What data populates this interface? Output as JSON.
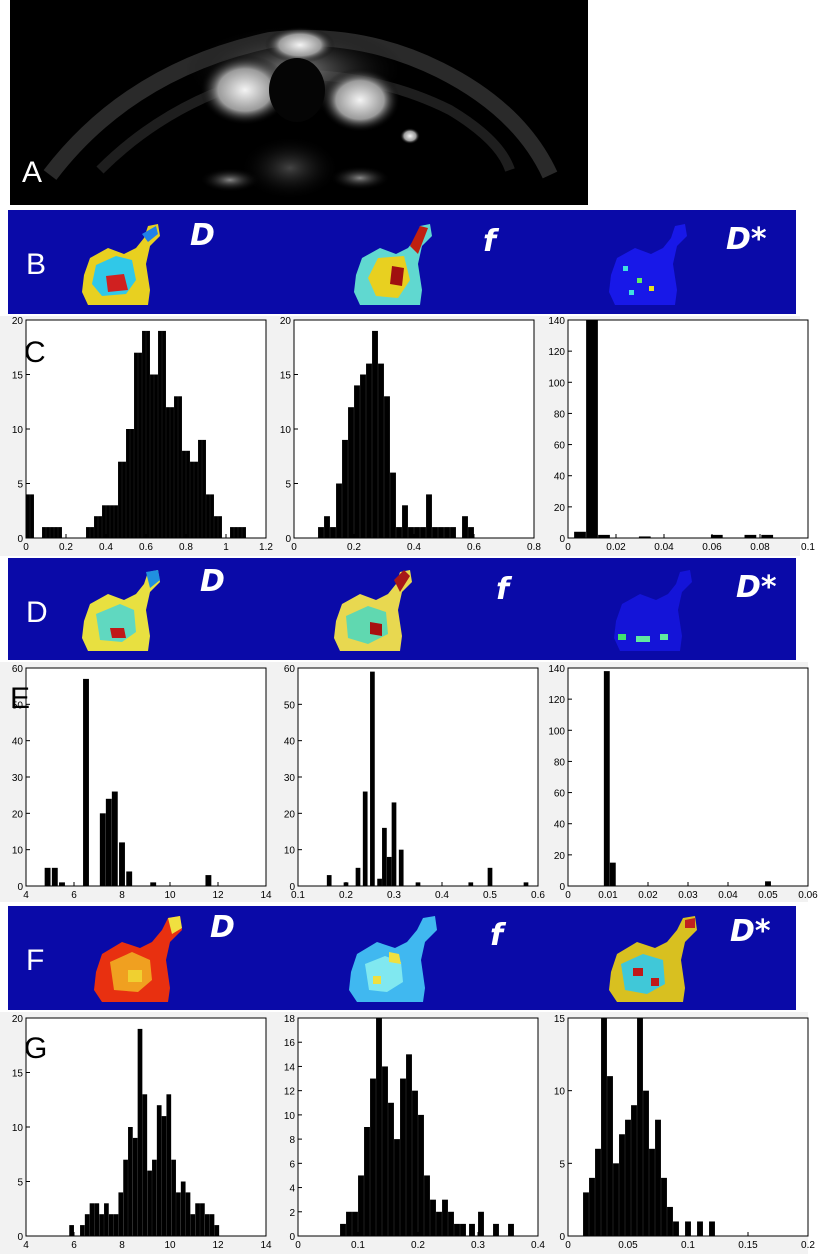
{
  "panel_labels": {
    "A": "A",
    "B": "B",
    "C": "C",
    "D": "D",
    "E": "E",
    "F": "F",
    "G": "G"
  },
  "map_params": [
    "D",
    "f",
    "D*"
  ],
  "colors": {
    "map_bg": "#0a0aa8",
    "bar": "#000000",
    "mri_bg": "#000000"
  },
  "chart_data": [
    {
      "id": "C1",
      "type": "bar",
      "xlim": [
        0,
        1.2
      ],
      "ylim": [
        0,
        20
      ],
      "xticks": [
        "0",
        "0.2",
        "0.4",
        "0.6",
        "0.8",
        "1",
        "1.2"
      ],
      "yticks": [
        "0",
        "5",
        "10",
        "15",
        "20"
      ],
      "x": [
        0.01,
        0.03,
        0.09,
        0.11,
        0.13,
        0.15,
        0.17,
        0.19,
        0.21,
        0.23,
        0.25,
        0.27,
        0.29,
        0.31,
        0.33,
        0.35,
        0.37,
        0.39,
        0.41,
        0.43,
        0.45,
        0.47,
        0.49,
        0.51,
        0.53,
        0.55,
        0.57,
        0.59,
        0.61,
        0.63,
        0.65,
        0.67,
        0.69,
        0.71,
        0.73,
        0.75,
        0.77,
        0.79,
        0.81,
        0.83,
        0.85,
        0.87,
        0.89,
        0.91,
        0.93,
        0.95,
        0.97,
        0.99,
        1.01,
        1.03,
        1.05,
        1.07,
        1.09,
        1.11
      ],
      "values": [
        4,
        4,
        1,
        1,
        1,
        1,
        1,
        0,
        0,
        0,
        0,
        0,
        0,
        1,
        1,
        2,
        2,
        3,
        3,
        3,
        3,
        7,
        7,
        10,
        10,
        17,
        17,
        19,
        19,
        15,
        15,
        19,
        19,
        12,
        12,
        13,
        13,
        8,
        8,
        7,
        7,
        9,
        9,
        4,
        4,
        2,
        2,
        0,
        0,
        1,
        1,
        1,
        1,
        0
      ]
    },
    {
      "id": "C2",
      "type": "bar",
      "xlim": [
        0,
        0.8
      ],
      "ylim": [
        0,
        20
      ],
      "xticks": [
        "0",
        "0.2",
        "0.4",
        "0.6",
        "0.8"
      ],
      "yticks": [
        "0",
        "5",
        "10",
        "15",
        "20"
      ],
      "x": [
        0.09,
        0.11,
        0.13,
        0.15,
        0.17,
        0.19,
        0.21,
        0.23,
        0.25,
        0.27,
        0.29,
        0.31,
        0.33,
        0.35,
        0.37,
        0.39,
        0.41,
        0.43,
        0.45,
        0.47,
        0.49,
        0.51,
        0.53,
        0.55,
        0.57,
        0.59
      ],
      "values": [
        1,
        2,
        1,
        5,
        9,
        12,
        14,
        15,
        16,
        19,
        16,
        13,
        6,
        1,
        3,
        1,
        1,
        1,
        4,
        1,
        1,
        1,
        1,
        0,
        2,
        1
      ]
    },
    {
      "id": "C3",
      "type": "bar",
      "xlim": [
        0,
        0.1
      ],
      "ylim": [
        0,
        140
      ],
      "xticks": [
        "0",
        "0.02",
        "0.04",
        "0.06",
        "0.08",
        "0.1"
      ],
      "yticks": [
        "0",
        "20",
        "40",
        "60",
        "80",
        "100",
        "120",
        "140"
      ],
      "x": [
        0.005,
        0.01,
        0.015,
        0.032,
        0.062,
        0.076,
        0.083
      ],
      "values": [
        4,
        140,
        2,
        1,
        2,
        2,
        2
      ]
    },
    {
      "id": "E1",
      "type": "bar",
      "xlim": [
        4,
        14
      ],
      "ylim": [
        0,
        60
      ],
      "xticks": [
        "4",
        "6",
        "8",
        "10",
        "12",
        "14"
      ],
      "yticks": [
        "0",
        "10",
        "20",
        "30",
        "40",
        "50",
        "60"
      ],
      "x": [
        4.9,
        5.2,
        5.5,
        6.5,
        7.2,
        7.45,
        7.7,
        8.0,
        8.3,
        9.3,
        11.6
      ],
      "values": [
        5,
        5,
        1,
        57,
        20,
        24,
        26,
        12,
        4,
        1,
        3
      ]
    },
    {
      "id": "E2",
      "type": "bar",
      "xlim": [
        0.1,
        0.6
      ],
      "ylim": [
        0,
        60
      ],
      "xticks": [
        "0.1",
        "0.2",
        "0.3",
        "0.4",
        "0.5",
        "0.6"
      ],
      "yticks": [
        "0",
        "10",
        "20",
        "30",
        "40",
        "50",
        "60"
      ],
      "x": [
        0.165,
        0.2,
        0.225,
        0.24,
        0.255,
        0.27,
        0.28,
        0.29,
        0.3,
        0.315,
        0.35,
        0.46,
        0.5,
        0.575
      ],
      "values": [
        3,
        1,
        5,
        26,
        59,
        2,
        16,
        8,
        23,
        10,
        1,
        1,
        5,
        1
      ]
    },
    {
      "id": "E3",
      "type": "bar",
      "xlim": [
        0,
        0.06
      ],
      "ylim": [
        0,
        140
      ],
      "xticks": [
        "0",
        "0.01",
        "0.02",
        "0.03",
        "0.04",
        "0.05",
        "0.06"
      ],
      "yticks": [
        "0",
        "20",
        "40",
        "60",
        "80",
        "100",
        "120",
        "140"
      ],
      "x": [
        0.0097,
        0.0112,
        0.05
      ],
      "values": [
        138,
        15,
        3
      ]
    },
    {
      "id": "G1",
      "type": "bar",
      "xlim": [
        4,
        14
      ],
      "ylim": [
        0,
        20
      ],
      "xticks": [
        "4",
        "6",
        "8",
        "10",
        "12",
        "14"
      ],
      "yticks": [
        "0",
        "5",
        "10",
        "15",
        "20"
      ],
      "x": [
        5.9,
        6.1,
        6.35,
        6.55,
        6.75,
        6.95,
        7.15,
        7.35,
        7.55,
        7.75,
        7.95,
        8.15,
        8.35,
        8.55,
        8.75,
        8.95,
        9.15,
        9.35,
        9.55,
        9.75,
        9.95,
        10.15,
        10.35,
        10.55,
        10.75,
        10.95,
        11.15,
        11.35,
        11.55,
        11.75,
        11.95
      ],
      "values": [
        1,
        0,
        1,
        2,
        3,
        3,
        2,
        3,
        2,
        2,
        4,
        7,
        10,
        9,
        19,
        13,
        6,
        7,
        12,
        11,
        13,
        7,
        4,
        5,
        4,
        2,
        3,
        3,
        2,
        2,
        1
      ]
    },
    {
      "id": "G2",
      "type": "bar",
      "xlim": [
        0,
        0.4
      ],
      "ylim": [
        0,
        18
      ],
      "xticks": [
        "0",
        "0.1",
        "0.2",
        "0.3",
        "0.4"
      ],
      "yticks": [
        "0",
        "2",
        "4",
        "6",
        "8",
        "10",
        "12",
        "14",
        "16",
        "18"
      ],
      "x": [
        0.075,
        0.085,
        0.095,
        0.105,
        0.115,
        0.125,
        0.135,
        0.145,
        0.155,
        0.165,
        0.175,
        0.185,
        0.195,
        0.205,
        0.215,
        0.225,
        0.235,
        0.245,
        0.255,
        0.265,
        0.275,
        0.29,
        0.305,
        0.33,
        0.355
      ],
      "values": [
        1,
        2,
        2,
        5,
        9,
        13,
        18,
        14,
        11,
        8,
        13,
        15,
        12,
        10,
        5,
        3,
        2,
        3,
        2,
        1,
        1,
        1,
        2,
        1,
        1
      ]
    },
    {
      "id": "G3",
      "type": "bar",
      "xlim": [
        0,
        0.2
      ],
      "ylim": [
        0,
        15
      ],
      "xticks": [
        "0",
        "0.05",
        "0.1",
        "0.15",
        "0.2"
      ],
      "yticks": [
        "0",
        "5",
        "10",
        "15"
      ],
      "x": [
        0.015,
        0.02,
        0.025,
        0.03,
        0.035,
        0.04,
        0.045,
        0.05,
        0.055,
        0.06,
        0.065,
        0.07,
        0.075,
        0.08,
        0.085,
        0.09,
        0.1,
        0.11,
        0.12
      ],
      "values": [
        3,
        4,
        6,
        15,
        11,
        5,
        7,
        8,
        9,
        15,
        10,
        6,
        8,
        4,
        2,
        1,
        1,
        1,
        1
      ]
    }
  ]
}
